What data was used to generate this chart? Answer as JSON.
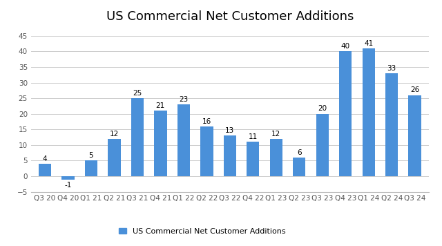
{
  "title": "US Commercial Net Customer Additions",
  "categories": [
    "Q3 20",
    "Q4 20",
    "Q1 21",
    "Q2 21",
    "Q3 21",
    "Q4 21",
    "Q1 22",
    "Q2 22",
    "Q3 22",
    "Q4 22",
    "Q1 23",
    "Q2 23",
    "Q3 23",
    "Q4 23",
    "Q1 24",
    "Q2 24",
    "Q3 24"
  ],
  "values": [
    4,
    -1,
    5,
    12,
    25,
    21,
    23,
    16,
    13,
    11,
    12,
    6,
    20,
    40,
    41,
    33,
    26
  ],
  "bar_color": "#4A90D9",
  "legend_label": "US Commercial Net Customer Additions",
  "ylim": [
    -5,
    47
  ],
  "yticks": [
    -5,
    0,
    5,
    10,
    15,
    20,
    25,
    30,
    35,
    40,
    45
  ],
  "background_color": "#ffffff",
  "title_fontsize": 13,
  "label_fontsize": 7.5,
  "tick_fontsize": 7.5,
  "grid_color": "#cccccc",
  "legend_fontsize": 8
}
